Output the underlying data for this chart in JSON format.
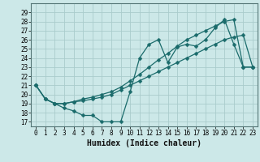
{
  "xlabel": "Humidex (Indice chaleur)",
  "bg_color": "#cce8e8",
  "grid_color": "#aacccc",
  "line_color": "#1a6b6b",
  "xlim": [
    -0.5,
    23.5
  ],
  "ylim": [
    16.5,
    30
  ],
  "yticks": [
    17,
    18,
    19,
    20,
    21,
    22,
    23,
    24,
    25,
    26,
    27,
    28,
    29
  ],
  "xticks": [
    0,
    1,
    2,
    3,
    4,
    5,
    6,
    7,
    8,
    9,
    10,
    11,
    12,
    13,
    14,
    15,
    16,
    17,
    18,
    19,
    20,
    21,
    22,
    23
  ],
  "series1_x": [
    0,
    1,
    2,
    3,
    4,
    5,
    6,
    7,
    8,
    9,
    10,
    11,
    12,
    13,
    14,
    15,
    16,
    17,
    18,
    19,
    20,
    21,
    22,
    23
  ],
  "series1_y": [
    21,
    19.5,
    19,
    18.5,
    18.2,
    17.7,
    17.7,
    17,
    17,
    17,
    20.3,
    24,
    25.5,
    26,
    23.5,
    25.2,
    25.5,
    25.3,
    26.0,
    27.3,
    28.2,
    25.5,
    23,
    23
  ],
  "series2_x": [
    0,
    1,
    2,
    3,
    4,
    5,
    6,
    7,
    8,
    9,
    10,
    11,
    12,
    13,
    14,
    15,
    16,
    17,
    18,
    19,
    20,
    21,
    22,
    23
  ],
  "series2_y": [
    21,
    19.5,
    19,
    19.0,
    19.2,
    19.3,
    19.5,
    19.7,
    20.0,
    20.5,
    21.0,
    21.5,
    22.0,
    22.5,
    23.0,
    23.5,
    24.0,
    24.5,
    25.0,
    25.5,
    26.0,
    26.3,
    26.5,
    23
  ],
  "series3_x": [
    0,
    1,
    2,
    3,
    4,
    5,
    6,
    7,
    8,
    9,
    10,
    11,
    12,
    13,
    14,
    15,
    16,
    17,
    18,
    19,
    20,
    21,
    22,
    23
  ],
  "series3_y": [
    21,
    19.5,
    19,
    19.0,
    19.2,
    19.5,
    19.7,
    20.0,
    20.3,
    20.8,
    21.5,
    22.2,
    23.0,
    23.8,
    24.5,
    25.3,
    26.0,
    26.5,
    27.0,
    27.5,
    28.0,
    28.2,
    23,
    23
  ],
  "tick_fontsize": 5.5,
  "xlabel_fontsize": 7
}
